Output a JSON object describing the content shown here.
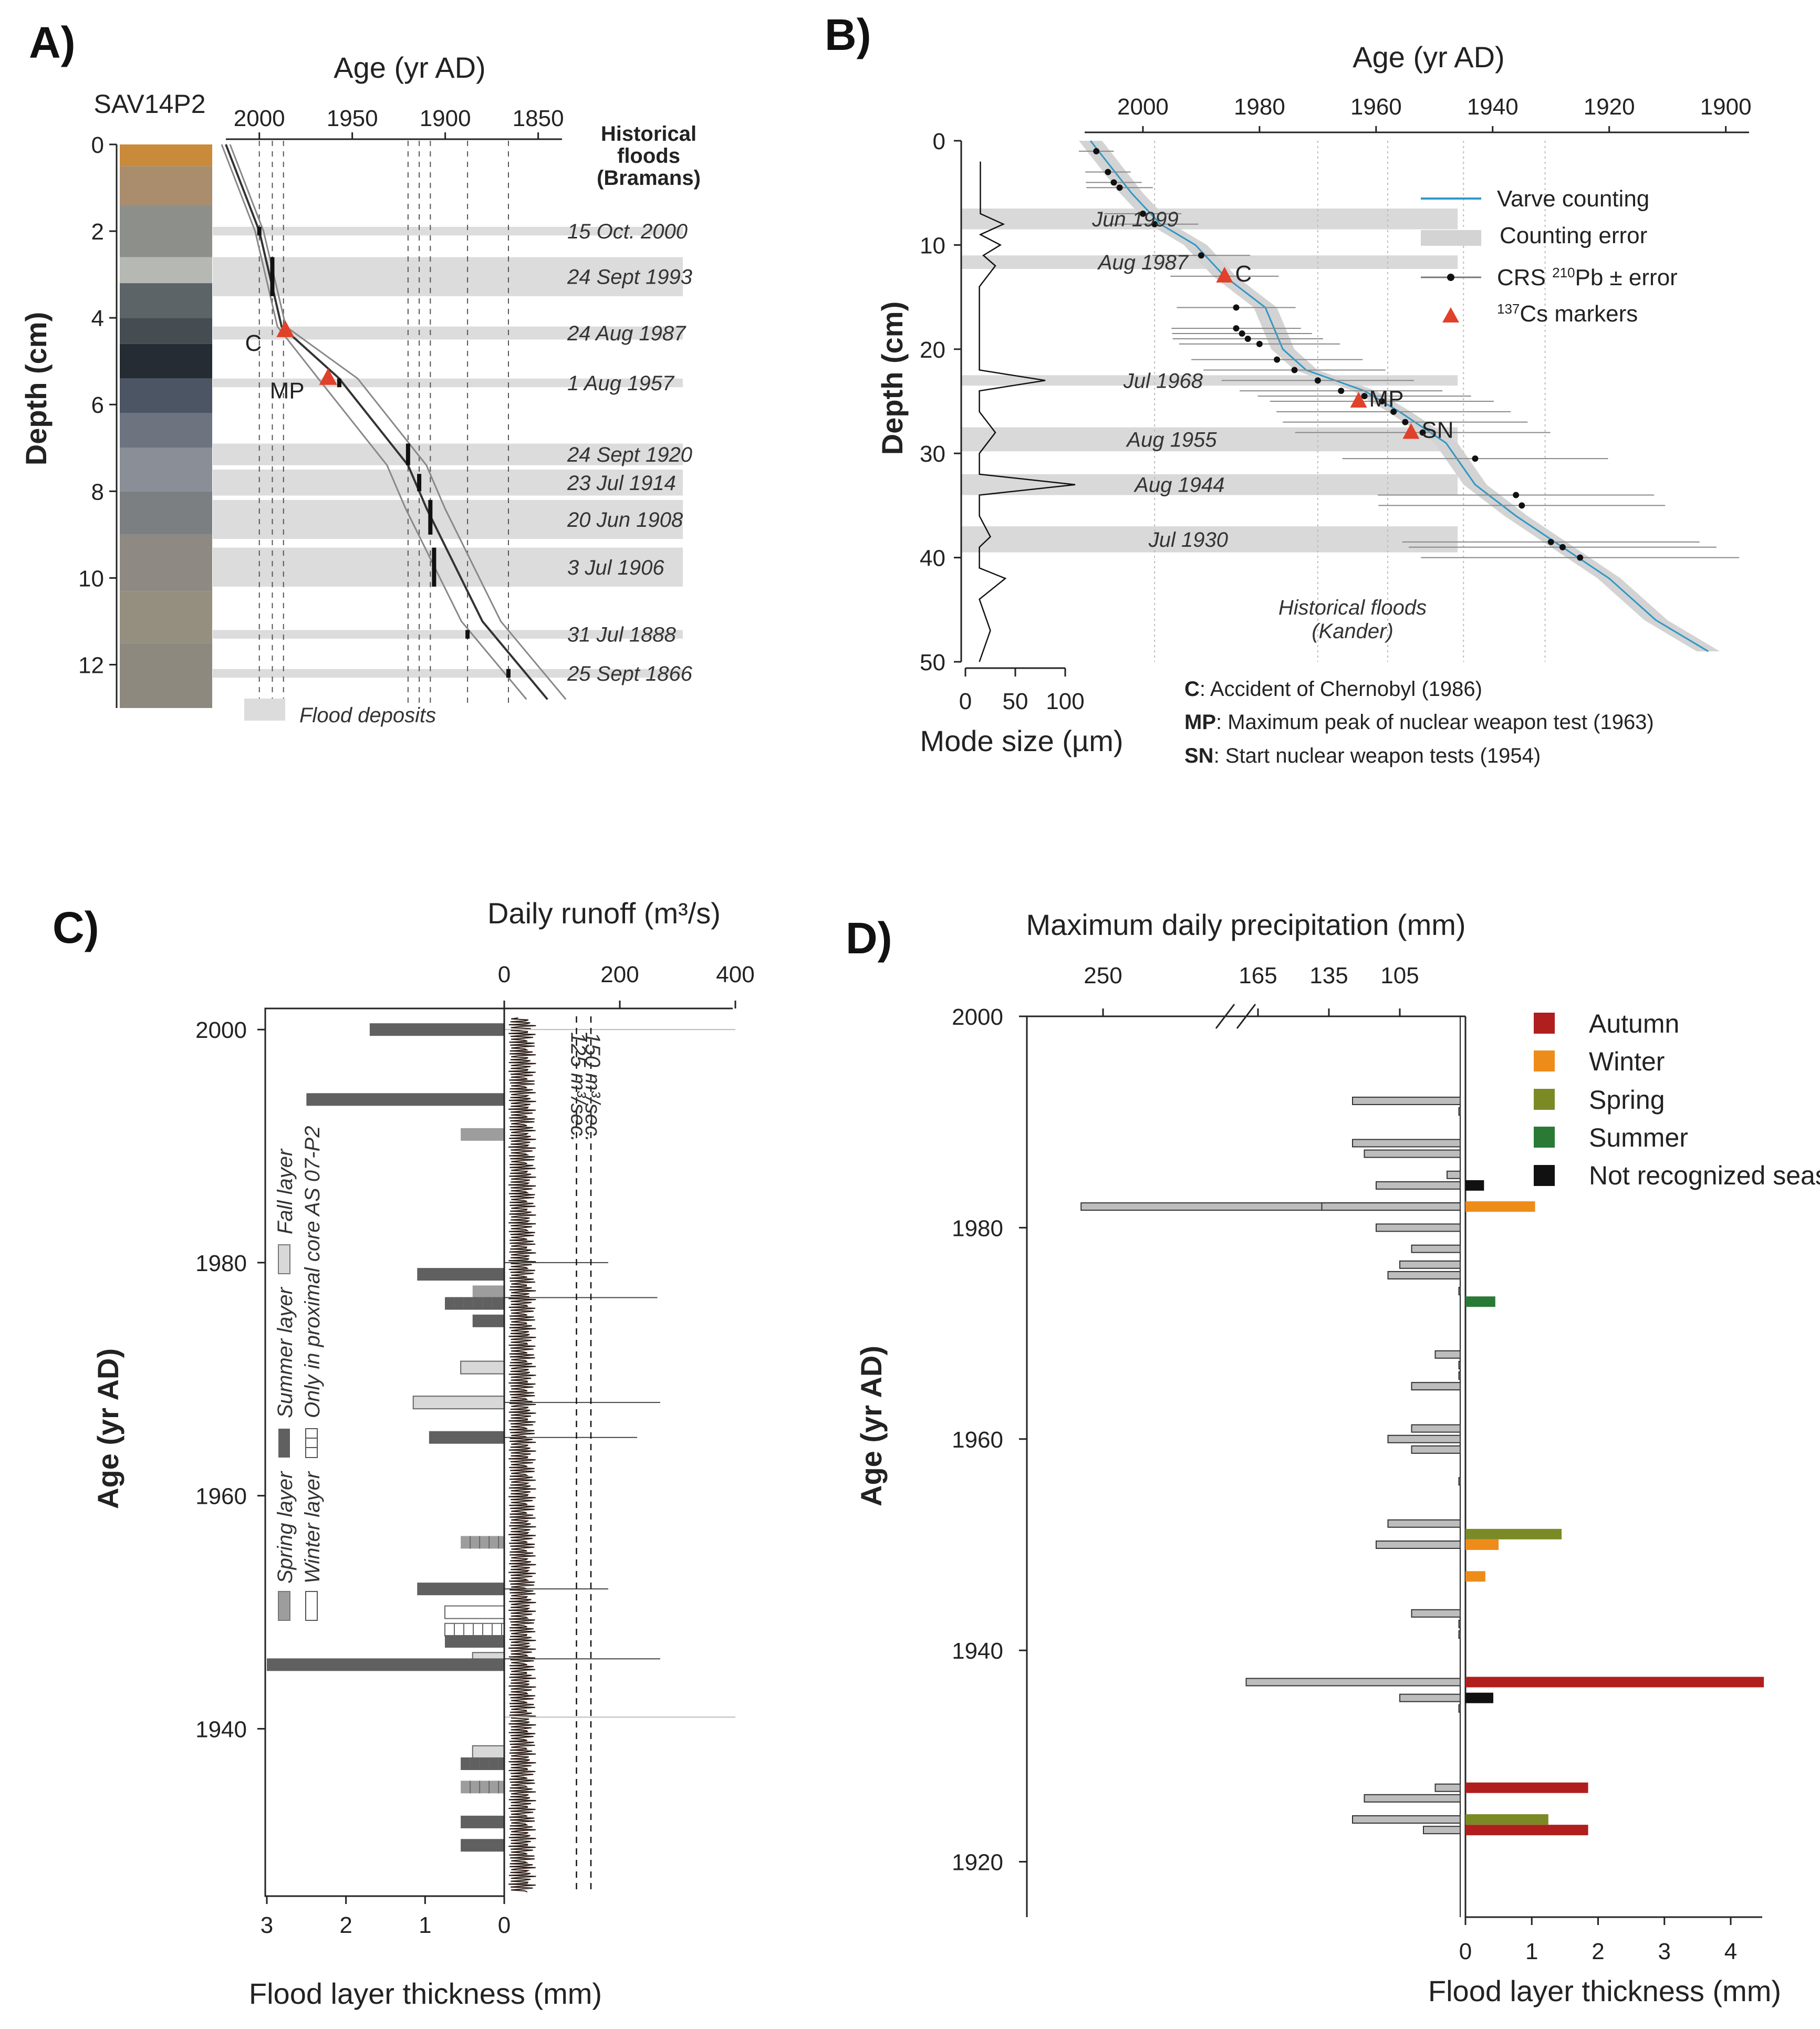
{
  "chart_data": [
    {
      "type": "line",
      "panel": "A)",
      "core_label": "SAV14P2",
      "xlabel": "Age (yr AD)",
      "ylabel": "Depth (cm)",
      "x_ticks": [
        "2000",
        "1950",
        "1900",
        "1850"
      ],
      "y_ticks": [
        "0",
        "2",
        "4",
        "6",
        "8",
        "10",
        "12"
      ],
      "xlim": [
        2018,
        1840
      ],
      "ylim": [
        0,
        13
      ],
      "legend_title": "Historical floods (Bramans)",
      "legend_title_lines": [
        "Historical",
        "floods",
        "(Bramans)"
      ],
      "deposit_legend": "Flood deposits",
      "age_depth": {
        "x": [
          2018,
          2000,
          1988,
          1957,
          1920,
          1910,
          1880,
          1845
        ],
        "y": [
          0,
          2.0,
          4.2,
          5.4,
          7.4,
          8.4,
          11.0,
          12.8
        ]
      },
      "markers": [
        {
          "label": "C",
          "age": 1986,
          "depth": 4.3
        },
        {
          "label": "MP",
          "age": 1963,
          "depth": 5.4
        }
      ],
      "floods": [
        {
          "label": "15 Oct. 2000",
          "top": 1.9,
          "bottom": 2.1
        },
        {
          "label": "24 Sept 1993",
          "top": 2.6,
          "bottom": 3.5
        },
        {
          "label": "24 Aug 1987",
          "top": 4.2,
          "bottom": 4.5
        },
        {
          "label": "1 Aug 1957",
          "top": 5.4,
          "bottom": 5.6
        },
        {
          "label": "24 Sept 1920",
          "top": 6.9,
          "bottom": 7.4
        },
        {
          "label": "23 Jul 1914",
          "top": 7.5,
          "bottom": 8.1
        },
        {
          "label": "20 Jun 1908",
          "top": 8.2,
          "bottom": 9.1
        },
        {
          "label": "3 Jul 1906",
          "top": 9.3,
          "bottom": 10.2
        },
        {
          "label": "31 Jul 1888",
          "top": 11.2,
          "bottom": 11.4
        },
        {
          "label": "25 Sept 1866",
          "top": 12.1,
          "bottom": 12.3
        }
      ]
    },
    {
      "type": "line",
      "panel": "B)",
      "xlabel": "Age (yr AD)",
      "ylabel": "Depth (cm)",
      "x_ticks": [
        "2000",
        "1980",
        "1960",
        "1940",
        "1920",
        "1900"
      ],
      "y_ticks": [
        "0",
        "10",
        "20",
        "30",
        "40",
        "50"
      ],
      "xlim": [
        2010,
        1896
      ],
      "ylim": [
        0,
        50
      ],
      "mode_size_xlabel": "Mode size (µm)",
      "mode_size_ticks": [
        "0",
        "50",
        "100"
      ],
      "legend": [
        "Varve counting",
        "Counting error",
        "Pb ± error",
        "Cs markers"
      ],
      "legend_prefix": [
        "CRS ",
        "210",
        "137"
      ],
      "floods_title": [
        "Historical floods",
        "(Kander)"
      ],
      "notes": [
        {
          "key": "C",
          "text": ": Accident of Chernobyl (1986)"
        },
        {
          "key": "MP",
          "text": ": Maximum peak of nuclear weapon test (1963)"
        },
        {
          "key": "SN",
          "text": ": Start nuclear weapon tests (1954)"
        }
      ],
      "varve": {
        "x": [
          2009,
          2002,
          1997,
          1991,
          1986,
          1979,
          1976,
          1972,
          1962,
          1956,
          1948,
          1943,
          1936,
          1928,
          1920,
          1912,
          1903
        ],
        "y": [
          0,
          5,
          8,
          10,
          13,
          16,
          20,
          22,
          24,
          26,
          29,
          33,
          36,
          39,
          42,
          46,
          49
        ]
      },
      "crs": {
        "x": [
          2008,
          2006,
          2005,
          2004,
          2000,
          1998,
          1990,
          1986,
          1984,
          1984,
          1983,
          1982,
          1980,
          1977,
          1974,
          1970,
          1966,
          1962,
          1959,
          1957,
          1955,
          1952,
          1943,
          1936,
          1935,
          1930,
          1928,
          1925
        ],
        "y": [
          1,
          3,
          4,
          4.5,
          7,
          8,
          11,
          13,
          16,
          18,
          18.5,
          19,
          19.5,
          21,
          22,
          23,
          24,
          24.5,
          25,
          26,
          27,
          28,
          30.5,
          34,
          35,
          38.5,
          39,
          40
        ]
      },
      "cs_markers": [
        {
          "label": "C",
          "age": 1986,
          "depth": 13
        },
        {
          "label": "MP",
          "age": 1963,
          "depth": 25
        },
        {
          "label": "SN",
          "age": 1954,
          "depth": 28
        }
      ],
      "floods": [
        {
          "label": "Jun 1999",
          "top": 6.5,
          "bottom": 8.5
        },
        {
          "label": "Aug 1987",
          "top": 11,
          "bottom": 12.3
        },
        {
          "label": "Jul 1968",
          "top": 22.5,
          "bottom": 23.5
        },
        {
          "label": "Aug 1955",
          "top": 27.5,
          "bottom": 29.8
        },
        {
          "label": "Aug 1944",
          "top": 32,
          "bottom": 34
        },
        {
          "label": "Jul 1930",
          "top": 37,
          "bottom": 39.5
        }
      ],
      "mode_size": {
        "depth": [
          2,
          5,
          7,
          8,
          9,
          10,
          11,
          12,
          14,
          18,
          22,
          23,
          24,
          26,
          28,
          30,
          32,
          33,
          34,
          36,
          38,
          39,
          41,
          42,
          44,
          47,
          50
        ],
        "value": [
          15,
          15,
          15,
          38,
          15,
          35,
          18,
          30,
          14,
          14,
          14,
          80,
          14,
          14,
          30,
          14,
          14,
          110,
          14,
          14,
          25,
          14,
          14,
          40,
          14,
          25,
          14
        ]
      }
    },
    {
      "type": "bar",
      "panel": "C)",
      "xlabel": "Flood layer thickness (mm)",
      "ylabel": "Age (yr AD)",
      "runoff_label": "Daily runoff (m³/s)",
      "thickness_ticks": [
        "3",
        "2",
        "1",
        "0"
      ],
      "runoff_ticks": [
        "0",
        "200",
        "400"
      ],
      "y_ticks": [
        "2000",
        "1980",
        "1960",
        "1940"
      ],
      "ylim": [
        2001,
        1926
      ],
      "thresholds": [
        {
          "label": "125 m³/sec.",
          "value": 125
        },
        {
          "label": "150 m³/sec.",
          "value": 150
        }
      ],
      "legend": [
        "Spring layer",
        "Winter layer",
        "Summer layer",
        "Only in proximal core  AS 07-P2",
        "Fall layer"
      ],
      "colors": {
        "spring": "#9d9d9d",
        "summer": "#606060",
        "fall": "#d8d8d8",
        "winter": "#ffffff"
      },
      "layers": [
        {
          "year": 2000,
          "thickness": 1.7,
          "season": "summer"
        },
        {
          "year": 1994,
          "thickness": 2.5,
          "season": "summer"
        },
        {
          "year": 1991,
          "thickness": 0.55,
          "season": "spring"
        },
        {
          "year": 1979,
          "thickness": 1.1,
          "season": "summer"
        },
        {
          "year": 1977.5,
          "thickness": 0.4,
          "season": "spring"
        },
        {
          "year": 1976.5,
          "thickness": 0.75,
          "season": "summer",
          "proximal": true
        },
        {
          "year": 1975,
          "thickness": 0.4,
          "season": "summer"
        },
        {
          "year": 1971,
          "thickness": 0.55,
          "season": "fall"
        },
        {
          "year": 1968,
          "thickness": 1.15,
          "season": "fall"
        },
        {
          "year": 1965,
          "thickness": 0.95,
          "season": "summer"
        },
        {
          "year": 1956,
          "thickness": 0.55,
          "season": "spring",
          "proximal": true
        },
        {
          "year": 1952,
          "thickness": 1.1,
          "season": "summer"
        },
        {
          "year": 1950,
          "thickness": 0.75,
          "season": "winter"
        },
        {
          "year": 1948.5,
          "thickness": 0.75,
          "season": "winter",
          "proximal": true
        },
        {
          "year": 1947.5,
          "thickness": 0.75,
          "season": "summer"
        },
        {
          "year": 1946,
          "thickness": 0.4,
          "season": "fall"
        },
        {
          "year": 1945.5,
          "thickness": 3.0,
          "season": "summer"
        },
        {
          "year": 1938,
          "thickness": 0.4,
          "season": "fall"
        },
        {
          "year": 1937,
          "thickness": 0.55,
          "season": "summer",
          "proximal": true
        },
        {
          "year": 1935,
          "thickness": 0.55,
          "season": "spring",
          "proximal": true
        },
        {
          "year": 1932,
          "thickness": 0.55,
          "season": "summer"
        },
        {
          "year": 1930,
          "thickness": 0.55,
          "season": "summer"
        }
      ],
      "runoff_peaks": [
        {
          "year": 2000,
          "value": 400
        },
        {
          "year": 1980,
          "value": 180
        },
        {
          "year": 1977,
          "value": 265
        },
        {
          "year": 1968,
          "value": 270
        },
        {
          "year": 1965,
          "value": 230
        },
        {
          "year": 1952,
          "value": 180
        },
        {
          "year": 1946,
          "value": 270
        },
        {
          "year": 1941,
          "value": 400
        }
      ]
    },
    {
      "type": "bar",
      "panel": "D)",
      "xlabel": "Flood layer thickness (mm)",
      "ylabel": "Age (yr AD)",
      "precip_label": "Maximum daily precipitation (mm)",
      "precip_ticks": [
        "250",
        "165",
        "135",
        "105"
      ],
      "thickness_ticks": [
        "0",
        "1",
        "2",
        "3",
        "4"
      ],
      "y_ticks": [
        "2000",
        "1980",
        "1960",
        "1940",
        "1920"
      ],
      "ylim": [
        2000,
        1916
      ],
      "legend": [
        "Autumn",
        "Winter",
        "Spring",
        "Summer",
        "Not recognized seasonality"
      ],
      "colors": {
        "autumn": "#b01e1e",
        "winter": "#ee8c1a",
        "spring": "#7c8a26",
        "summer": "#2a7a36",
        "unknown": "#111111"
      },
      "layers": [
        {
          "year": 1984,
          "thickness": 0.28,
          "season": "unknown"
        },
        {
          "year": 1982,
          "thickness": 1.05,
          "season": "winter"
        },
        {
          "year": 1973,
          "thickness": 0.45,
          "season": "summer"
        },
        {
          "year": 1951,
          "thickness": 1.45,
          "season": "spring"
        },
        {
          "year": 1950,
          "thickness": 0.5,
          "season": "winter"
        },
        {
          "year": 1947,
          "thickness": 0.3,
          "season": "winter"
        },
        {
          "year": 1937,
          "thickness": 4.5,
          "season": "autumn"
        },
        {
          "year": 1935.5,
          "thickness": 0.42,
          "season": "unknown"
        },
        {
          "year": 1927,
          "thickness": 1.85,
          "season": "autumn"
        },
        {
          "year": 1924,
          "thickness": 1.25,
          "season": "spring"
        },
        {
          "year": 1923,
          "thickness": 1.85,
          "season": "autumn"
        }
      ],
      "precip": [
        {
          "year": 1992,
          "value": 125
        },
        {
          "year": 1991,
          "value": 80
        },
        {
          "year": 1988,
          "value": 125
        },
        {
          "year": 1987,
          "value": 120
        },
        {
          "year": 1985,
          "value": 85
        },
        {
          "year": 1984,
          "value": 115
        },
        {
          "year": 1982,
          "value": 272
        },
        {
          "year": 1982,
          "value": 138
        },
        {
          "year": 1980,
          "value": 115
        },
        {
          "year": 1978,
          "value": 100
        },
        {
          "year": 1976.5,
          "value": 105
        },
        {
          "year": 1975.5,
          "value": 110
        },
        {
          "year": 1974,
          "value": 80
        },
        {
          "year": 1968,
          "value": 90
        },
        {
          "year": 1967,
          "value": 80
        },
        {
          "year": 1966,
          "value": 80
        },
        {
          "year": 1965,
          "value": 100
        },
        {
          "year": 1961,
          "value": 100
        },
        {
          "year": 1960,
          "value": 110
        },
        {
          "year": 1959,
          "value": 100
        },
        {
          "year": 1956,
          "value": 80
        },
        {
          "year": 1952,
          "value": 110
        },
        {
          "year": 1950,
          "value": 115
        },
        {
          "year": 1943.5,
          "value": 100
        },
        {
          "year": 1942.5,
          "value": 80
        },
        {
          "year": 1941.5,
          "value": 80
        },
        {
          "year": 1937,
          "value": 170
        },
        {
          "year": 1935.5,
          "value": 105
        },
        {
          "year": 1934.5,
          "value": 80
        },
        {
          "year": 1927,
          "value": 90
        },
        {
          "year": 1926,
          "value": 120
        },
        {
          "year": 1924,
          "value": 125
        },
        {
          "year": 1923,
          "value": 95
        }
      ]
    }
  ]
}
